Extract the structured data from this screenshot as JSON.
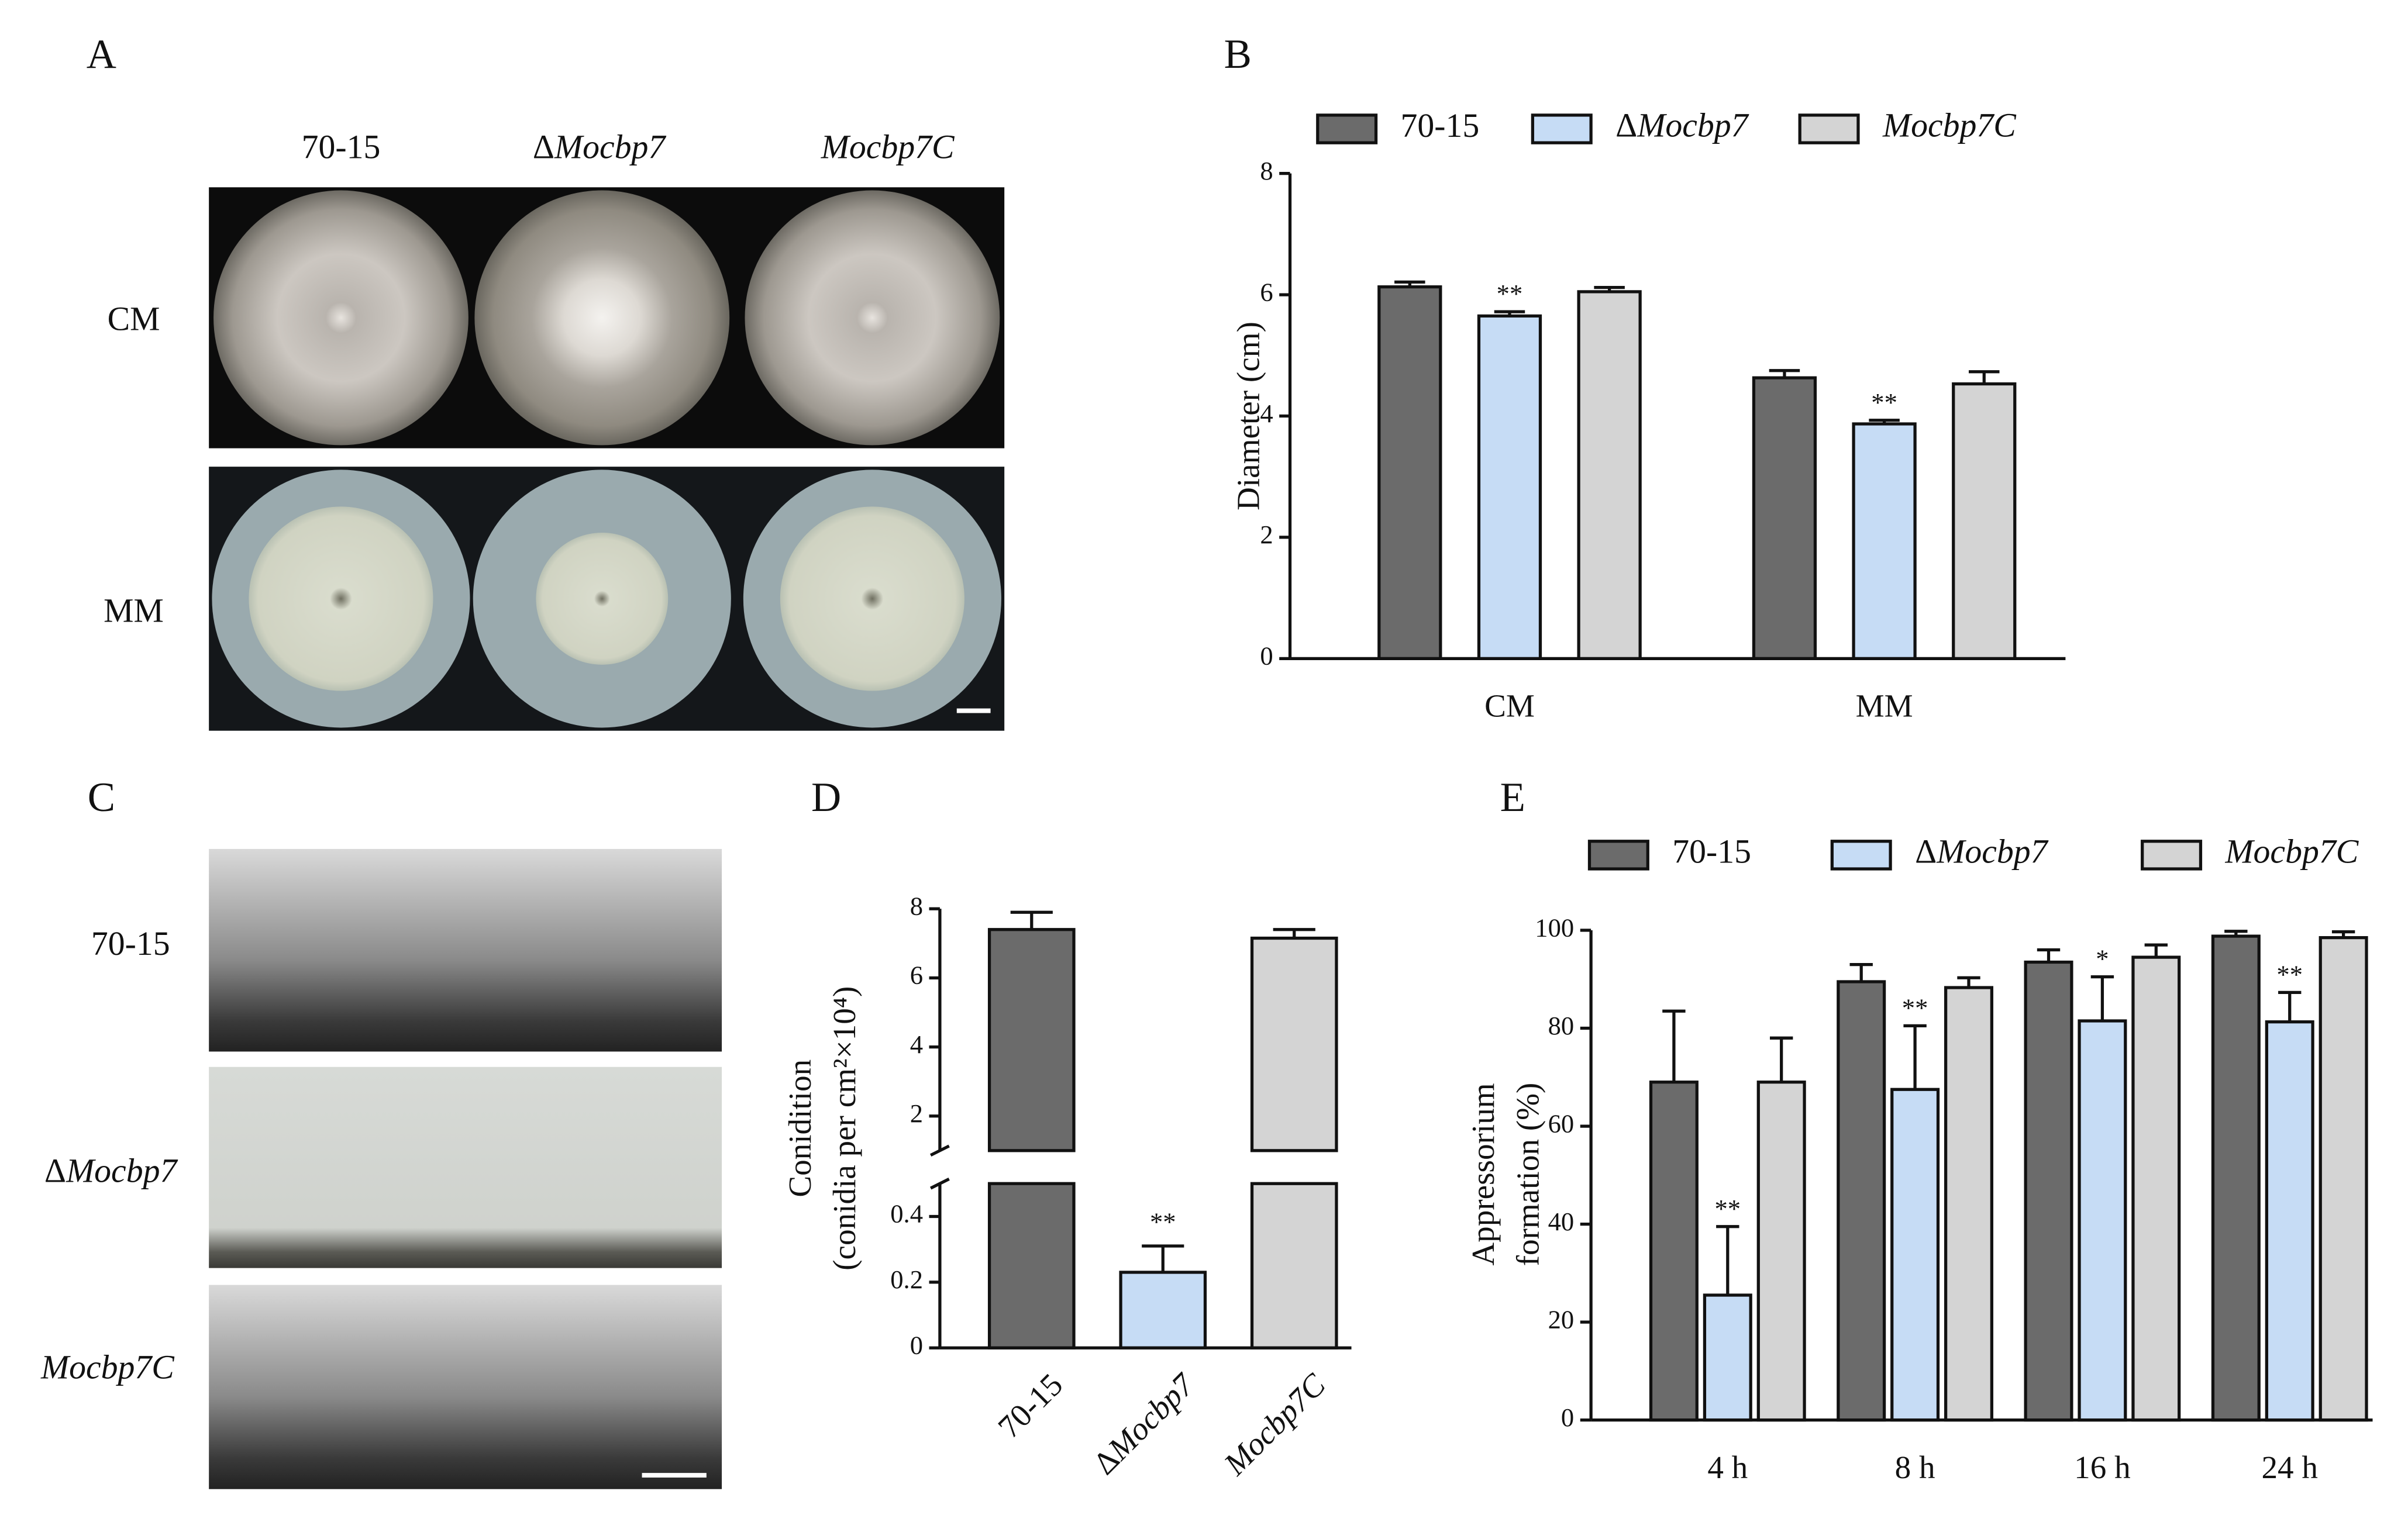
{
  "panel_labels": [
    "A",
    "B",
    "C",
    "D",
    "E"
  ],
  "plate_photos": {
    "columns": [
      "70-15",
      "ΔMocbp7",
      "Mocbp7C"
    ],
    "rows": [
      "CM",
      "MM"
    ]
  },
  "sporulation_photos": {
    "rows": [
      "70-15",
      "ΔMocbp7",
      "Mocbp7C"
    ]
  },
  "chart_data": [
    {
      "type": "bar",
      "categories": [
        "CM",
        "MM"
      ],
      "series": [
        {
          "name": "70-15",
          "color": "#6b6b6b",
          "values": [
            6.13,
            4.63
          ],
          "errors": [
            0.08,
            0.12
          ]
        },
        {
          "name": "ΔMocbp7",
          "color": "#c6dcf5",
          "values": [
            5.65,
            3.87
          ],
          "errors": [
            0.07,
            0.06
          ],
          "marks": [
            "**",
            "**"
          ]
        },
        {
          "name": "Mocbp7C",
          "color": "#d4d4d4",
          "values": [
            6.05,
            4.53
          ],
          "errors": [
            0.07,
            0.2
          ]
        }
      ],
      "ylabel": "Diameter (cm)",
      "ylim": [
        0,
        8
      ],
      "yticks": [
        0,
        2,
        4,
        6,
        8
      ],
      "legend": "top"
    },
    {
      "type": "bar",
      "categories": [
        "70-15",
        "ΔMocbp7",
        "Mocbp7C"
      ],
      "values": [
        7.4,
        0.23,
        7.15
      ],
      "errors": [
        0.5,
        0.08,
        0.25
      ],
      "marks": [
        null,
        "**",
        null
      ],
      "colors": [
        "#6b6b6b",
        "#c6dcf5",
        "#d4d4d4"
      ],
      "ylabel": [
        "Conidition",
        "(conidia per cm²×10⁴)"
      ],
      "ylim": [
        0,
        8
      ],
      "ybreak": [
        0.5,
        1
      ],
      "yticks": [
        0,
        0.2,
        0.4,
        2,
        4,
        6,
        8
      ]
    },
    {
      "type": "bar",
      "categories": [
        "4 h",
        "8 h",
        "16 h",
        "24 h"
      ],
      "series": [
        {
          "name": "70-15",
          "color": "#6b6b6b",
          "values": [
            69,
            89.5,
            93.5,
            98.8
          ],
          "errors": [
            14.5,
            3.5,
            2.5,
            1
          ]
        },
        {
          "name": "ΔMocbp7",
          "color": "#c6dcf5",
          "values": [
            25.5,
            67.5,
            81.5,
            81.3
          ],
          "errors": [
            14,
            13,
            9,
            6
          ],
          "marks": [
            "**",
            "**",
            "*",
            "**"
          ]
        },
        {
          "name": "Mocbp7C",
          "color": "#d4d4d4",
          "values": [
            69,
            88.3,
            94.5,
            98.5
          ],
          "errors": [
            9,
            2,
            2.5,
            1.2
          ]
        }
      ],
      "ylabel": [
        "Appressorium",
        "formation (%)"
      ],
      "ylim": [
        0,
        100
      ],
      "yticks": [
        0,
        20,
        40,
        60,
        80,
        100
      ],
      "legend": "top"
    }
  ]
}
